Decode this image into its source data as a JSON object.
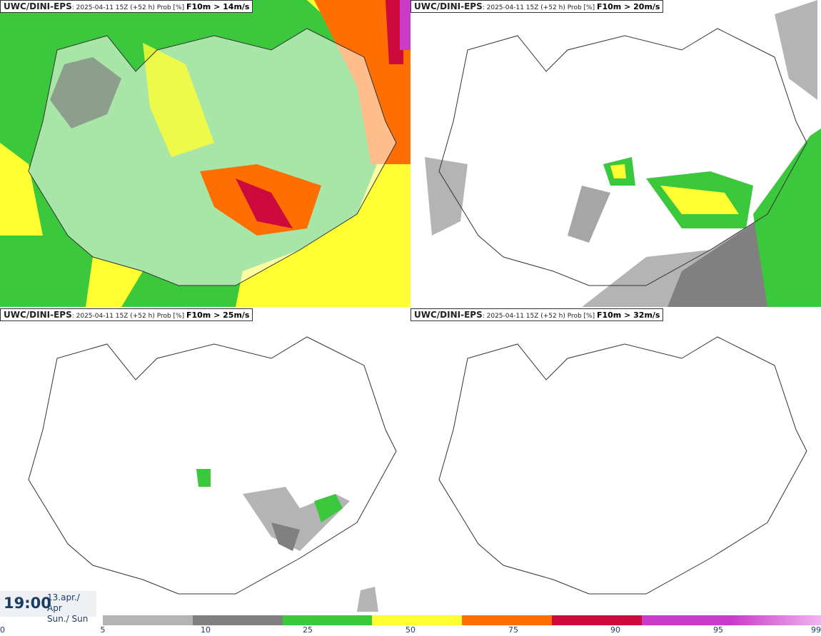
{
  "panels": [
    {
      "model": "UWC/DINI-EPS",
      "info": ": 2025-04-11 15Z (+52 h) Prob [%] ",
      "param": "F10m > 14m/s"
    },
    {
      "model": "UWC/DINI-EPS",
      "info": ": 2025-04-11 15Z (+52 h) Prob [%] ",
      "param": "F10m > 20m/s"
    },
    {
      "model": "UWC/DINI-EPS",
      "info": ": 2025-04-11 15Z (+52 h) Prob [%] ",
      "param": "F10m > 25m/s"
    },
    {
      "model": "UWC/DINI-EPS",
      "info": ": 2025-04-11 15Z (+52 h) Prob [%] ",
      "param": "F10m > 32m/s"
    }
  ],
  "time": {
    "clock": "19:00",
    "date": "13.apr./ Apr",
    "day": "Sun./ Sun"
  },
  "colorbar": {
    "ticks": [
      "0",
      "5",
      "10",
      "25",
      "50",
      "75",
      "90",
      "95",
      "99"
    ],
    "colors": [
      "#b4b4b4",
      "#808080",
      "#3cc83c",
      "#ffff32",
      "#ff6e00",
      "#cc0a3c",
      "#c83cc8",
      "#f0b4f0"
    ]
  }
}
